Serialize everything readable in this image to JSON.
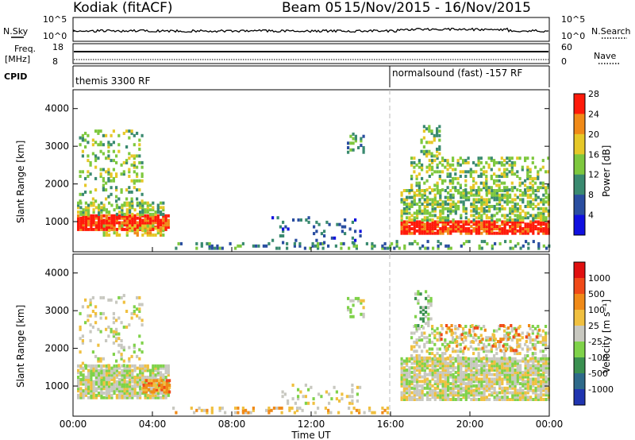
{
  "header": {
    "radar": "Kodiak (fitACF)",
    "beam": "Beam 05",
    "date_range": "15/Nov/2015 - 16/Nov/2015"
  },
  "noise_panel": {
    "left_label": "N.Sky",
    "right_label": "N.Search",
    "tick_top": "10^5",
    "tick_bottom": "10^0"
  },
  "freq_panel": {
    "left_label_1": "Freq.",
    "left_label_2": "[MHz]",
    "tick_top": "18",
    "tick_bottom": "8",
    "right_label": "Nave",
    "right_tick_top": "60",
    "right_tick_bottom": "0"
  },
  "cpid_panel": {
    "label": "CPID",
    "mode_1": "themis 3300 RF",
    "mode_2": "normalsound (fast) -157 RF"
  },
  "power_panel": {
    "ylabel": "Slant Range [km]",
    "yticks": [
      "1000",
      "2000",
      "3000",
      "4000"
    ],
    "colorbar_label": "Power [dB]",
    "colorbar_ticks": [
      "4",
      "8",
      "12",
      "16",
      "20",
      "24",
      "28"
    ],
    "colors": [
      "#1010e0",
      "#2a4ea0",
      "#3a8a70",
      "#7ec83e",
      "#e6c828",
      "#f08a18",
      "#ff1a0a"
    ]
  },
  "velocity_panel": {
    "ylabel": "Slant Range [km]",
    "yticks": [
      "1000",
      "2000",
      "3000",
      "4000"
    ],
    "colorbar_label": "Velocity [m s⁻¹]",
    "colorbar_ticks": [
      "1000",
      "500",
      "100",
      "25",
      "-25",
      "-100",
      "-500",
      "-1000"
    ],
    "colors": [
      "#2035b0",
      "#2e6a8a",
      "#3a9050",
      "#7fd24a",
      "#c8c8c0",
      "#f0c040",
      "#f08a18",
      "#f04a18",
      "#e01010"
    ]
  },
  "x_axis": {
    "ticks": [
      "00:00",
      "04:00",
      "08:00",
      "12:00",
      "16:00",
      "20:00",
      "00:00"
    ],
    "label": "Time UT"
  },
  "chart_data": {
    "type": "heatmap",
    "x_range_hours": [
      0,
      24
    ],
    "y_range_km": [
      200,
      4500
    ],
    "mode_change_hour": 16,
    "power_regions": [
      {
        "t0": 0.2,
        "t1": 4.8,
        "r0": 750,
        "r1": 1150,
        "density": 0.9,
        "level": 6
      },
      {
        "t0": 0.2,
        "t1": 4.6,
        "r0": 1150,
        "r1": 1500,
        "density": 0.55,
        "level": 3
      },
      {
        "t0": 0.3,
        "t1": 3.5,
        "r0": 1500,
        "r1": 3400,
        "density": 0.2,
        "level": 3
      },
      {
        "t0": 1.5,
        "t1": 4.5,
        "r0": 600,
        "r1": 900,
        "density": 0.5,
        "level": 4
      },
      {
        "t0": 5.0,
        "t1": 16.0,
        "r0": 250,
        "r1": 420,
        "density": 0.25,
        "level": 2
      },
      {
        "t0": 10.0,
        "t1": 14.5,
        "r0": 400,
        "r1": 1100,
        "density": 0.12,
        "level": 1
      },
      {
        "t0": 13.8,
        "t1": 14.6,
        "r0": 2800,
        "r1": 3300,
        "density": 0.45,
        "level": 2
      },
      {
        "t0": 16.5,
        "t1": 24.0,
        "r0": 650,
        "r1": 1000,
        "density": 0.85,
        "level": 6
      },
      {
        "t0": 16.5,
        "t1": 24.0,
        "r0": 1000,
        "r1": 1800,
        "density": 0.55,
        "level": 3
      },
      {
        "t0": 17.0,
        "t1": 24.0,
        "r0": 1800,
        "r1": 2700,
        "density": 0.35,
        "level": 3
      },
      {
        "t0": 17.5,
        "t1": 18.5,
        "r0": 2700,
        "r1": 3500,
        "density": 0.3,
        "level": 3
      },
      {
        "t0": 16.0,
        "t1": 24.0,
        "r0": 250,
        "r1": 450,
        "density": 0.2,
        "level": 2
      }
    ],
    "velocity_regions": [
      {
        "t0": 0.2,
        "t1": 4.8,
        "r0": 650,
        "r1": 1500,
        "density": 0.85,
        "level": 4
      },
      {
        "t0": 0.3,
        "t1": 3.5,
        "r0": 1500,
        "r1": 3400,
        "density": 0.18,
        "level": 4
      },
      {
        "t0": 3.5,
        "t1": 4.8,
        "r0": 800,
        "r1": 1150,
        "density": 0.6,
        "level": 6
      },
      {
        "t0": 5.0,
        "t1": 16.0,
        "r0": 250,
        "r1": 420,
        "density": 0.25,
        "level": 5
      },
      {
        "t0": 10.5,
        "t1": 14.5,
        "r0": 500,
        "r1": 1000,
        "density": 0.15,
        "level": 4
      },
      {
        "t0": 13.8,
        "t1": 14.6,
        "r0": 2800,
        "r1": 3300,
        "density": 0.45,
        "level": 4
      },
      {
        "t0": 16.5,
        "t1": 24.0,
        "r0": 600,
        "r1": 1700,
        "density": 0.85,
        "level": 4
      },
      {
        "t0": 17.0,
        "t1": 24.0,
        "r0": 1700,
        "r1": 2600,
        "density": 0.35,
        "level": 4
      },
      {
        "t0": 18.5,
        "t1": 23.5,
        "r0": 1900,
        "r1": 2600,
        "density": 0.15,
        "level": 6
      },
      {
        "t0": 17.2,
        "t1": 18.0,
        "r0": 2500,
        "r1": 3500,
        "density": 0.35,
        "level": 3
      }
    ]
  }
}
